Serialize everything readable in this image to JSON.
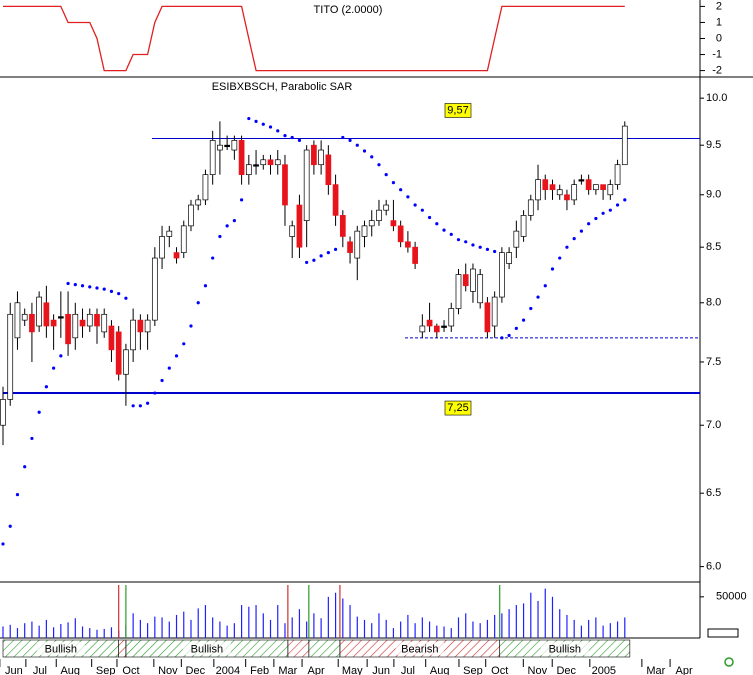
{
  "chart_data": [
    {
      "type": "line",
      "title": "TITO (2.0000)",
      "color": "#e02020",
      "values": [
        2,
        2,
        2,
        2,
        2,
        2,
        2,
        2,
        2,
        1,
        1,
        1,
        1,
        0,
        -2,
        -2,
        -2,
        -2,
        -1,
        -1,
        -1,
        1,
        2,
        2,
        2,
        2,
        2,
        2,
        2,
        2,
        2,
        2,
        2,
        2,
        0,
        -2,
        -2,
        -2,
        -2,
        -2,
        -2,
        -2,
        -2,
        -2,
        -2,
        -2,
        -2,
        -2,
        -2,
        -2,
        -2,
        -2,
        -2,
        -2,
        -2,
        -2,
        -2,
        -2,
        -2,
        -2,
        -2,
        -2,
        -2,
        -2,
        -2,
        -2,
        -2,
        -2,
        0,
        2,
        2,
        2,
        2,
        2,
        2,
        2,
        2,
        2,
        2,
        2,
        2,
        2,
        2,
        2,
        2,
        2,
        2
      ],
      "ylim": [
        -2.4,
        2.4
      ],
      "yticks": [
        2,
        1,
        0,
        -1,
        -2
      ]
    },
    {
      "type": "candlestick",
      "title": "ESIBXBSCH, Parabolic SAR",
      "log_scale": true,
      "up_color": "#ffffff",
      "down_color": "#e8141c",
      "flat_color": "#000000",
      "open": [
        7.0,
        7.2,
        7.7,
        7.85,
        7.9,
        7.8,
        8.0,
        7.85,
        7.88,
        7.9,
        7.7,
        7.85,
        7.8,
        7.9,
        7.75,
        7.8,
        7.75,
        7.4,
        7.6,
        7.85,
        7.75,
        7.85,
        8.4,
        8.6,
        8.45,
        8.45,
        8.7,
        8.9,
        8.95,
        9.2,
        9.45,
        9.5,
        9.45,
        9.55,
        9.2,
        9.3,
        9.3,
        9.35,
        9.3,
        9.3,
        8.6,
        8.9,
        8.75,
        9.5,
        9.3,
        9.4,
        9.1,
        8.8,
        8.55,
        8.4,
        8.6,
        8.7,
        8.75,
        8.85,
        8.75,
        8.7,
        8.55,
        8.5,
        7.75,
        7.85,
        7.8,
        7.8,
        7.8,
        7.95,
        8.25,
        8.1,
        8.0,
        8.0,
        7.8,
        8.05,
        8.35,
        8.5,
        8.6,
        8.8,
        8.95,
        9.15,
        9.1,
        9.0,
        9.0,
        8.95,
        9.15,
        9.15,
        9.05,
        9.1,
        9.0,
        9.1,
        9.3
      ],
      "high": [
        7.3,
        8.0,
        8.1,
        7.95,
        8.0,
        8.1,
        8.15,
        7.9,
        8.1,
        8.1,
        8.0,
        7.95,
        7.95,
        7.95,
        7.95,
        7.85,
        7.8,
        7.65,
        7.95,
        7.9,
        7.9,
        8.5,
        8.7,
        8.7,
        8.5,
        8.75,
        8.95,
        9.0,
        9.25,
        9.65,
        9.75,
        9.6,
        9.6,
        9.6,
        9.4,
        9.45,
        9.4,
        9.4,
        9.45,
        9.4,
        8.75,
        9.0,
        9.5,
        9.55,
        9.55,
        9.5,
        9.2,
        8.85,
        8.6,
        8.7,
        8.75,
        8.85,
        8.95,
        8.95,
        8.95,
        8.75,
        8.65,
        8.55,
        7.9,
        8.0,
        7.82,
        7.85,
        8.0,
        8.3,
        8.35,
        8.35,
        8.3,
        8.05,
        8.1,
        8.5,
        8.5,
        8.75,
        8.85,
        9.0,
        9.3,
        9.2,
        9.15,
        9.1,
        9.05,
        9.15,
        9.2,
        9.2,
        9.1,
        9.1,
        9.15,
        9.35,
        9.75
      ],
      "low": [
        6.85,
        7.15,
        7.6,
        7.8,
        7.5,
        7.75,
        7.7,
        7.6,
        7.7,
        7.55,
        7.6,
        7.7,
        7.75,
        7.65,
        7.7,
        7.5,
        7.35,
        7.15,
        7.5,
        7.6,
        7.6,
        7.8,
        8.3,
        8.5,
        8.35,
        8.4,
        8.65,
        8.85,
        8.9,
        9.1,
        9.2,
        9.45,
        9.35,
        9.1,
        9.1,
        9.2,
        9.25,
        9.2,
        9.2,
        8.7,
        8.4,
        8.4,
        8.5,
        9.2,
        9.2,
        9.0,
        8.7,
        8.5,
        8.35,
        8.2,
        8.5,
        8.6,
        8.7,
        8.8,
        8.65,
        8.5,
        8.45,
        8.3,
        7.7,
        7.75,
        7.7,
        7.75,
        7.75,
        7.9,
        8.1,
        8.0,
        7.95,
        7.7,
        7.7,
        8.0,
        8.3,
        8.4,
        8.55,
        8.75,
        8.85,
        8.95,
        8.95,
        8.95,
        8.85,
        8.9,
        9.1,
        9.0,
        9.0,
        8.95,
        8.95,
        9.05,
        9.3
      ],
      "close": [
        7.2,
        7.9,
        8.0,
        7.9,
        7.75,
        8.05,
        7.8,
        7.8,
        7.88,
        7.65,
        7.9,
        7.8,
        7.9,
        7.8,
        7.9,
        7.6,
        7.4,
        7.6,
        7.85,
        7.75,
        7.85,
        8.4,
        8.6,
        8.65,
        8.4,
        8.7,
        8.9,
        8.95,
        9.2,
        9.55,
        9.5,
        9.5,
        9.55,
        9.2,
        9.3,
        9.3,
        9.35,
        9.3,
        9.35,
        8.9,
        8.7,
        8.5,
        9.45,
        9.3,
        9.45,
        9.1,
        8.8,
        8.6,
        8.45,
        8.65,
        8.7,
        8.75,
        8.85,
        8.9,
        8.7,
        8.55,
        8.5,
        8.35,
        7.8,
        7.8,
        7.75,
        7.8,
        7.95,
        8.25,
        8.15,
        8.3,
        8.25,
        7.75,
        8.05,
        8.45,
        8.45,
        8.65,
        8.8,
        8.95,
        9.15,
        9.05,
        9.05,
        9.05,
        8.95,
        9.1,
        9.15,
        9.05,
        9.1,
        9.05,
        9.1,
        9.3,
        9.7
      ],
      "sar": {
        "color": "#0000ff",
        "values": [
          6.15,
          6.27,
          6.49,
          6.69,
          6.9,
          7.1,
          7.3,
          7.45,
          7.55,
          8.17,
          8.16,
          8.15,
          8.14,
          8.13,
          8.12,
          8.1,
          8.08,
          8.04,
          7.15,
          7.15,
          7.17,
          7.25,
          7.35,
          7.45,
          7.55,
          7.65,
          7.8,
          8.0,
          8.15,
          8.4,
          8.6,
          8.7,
          8.75,
          8.95,
          9.78,
          9.75,
          9.72,
          9.69,
          9.65,
          9.6,
          9.58,
          9.55,
          8.36,
          8.38,
          8.42,
          8.45,
          8.48,
          9.58,
          9.55,
          9.5,
          9.44,
          9.38,
          9.3,
          9.2,
          9.12,
          9.05,
          8.98,
          8.9,
          8.85,
          8.78,
          8.72,
          8.66,
          8.62,
          8.57,
          8.55,
          8.52,
          8.5,
          8.48,
          8.46,
          7.7,
          7.72,
          7.78,
          7.85,
          7.95,
          8.05,
          8.15,
          8.3,
          8.4,
          8.5,
          8.58,
          8.65,
          8.72,
          8.77,
          8.82,
          8.85,
          8.9,
          8.95
        ]
      },
      "hlines": [
        {
          "value": 9.57,
          "label": "9,57",
          "from": 20.6,
          "color": "#0000cc",
          "width": 1
        },
        {
          "value": 7.25,
          "label": "7,25",
          "from": 0,
          "color": "#0000cc",
          "width": 2
        },
        {
          "value": 7.7,
          "from": 55.6,
          "color": "#0000cc",
          "width": 1,
          "dashed": true
        }
      ],
      "label_color": "#ffff00",
      "ylim": [
        5.9,
        10.2
      ],
      "yticks": [
        {
          "value": 10,
          "label": "10.0"
        },
        9.5,
        {
          "value": 9,
          "label": "9.0"
        },
        8.5,
        {
          "value": 8,
          "label": "8.0"
        },
        7.5,
        {
          "value": 7,
          "label": "7.0"
        },
        6.5,
        {
          "value": 6,
          "label": "6.0"
        }
      ]
    },
    {
      "type": "volume",
      "color": "#2020ff",
      "values": [
        14000,
        16000,
        12000,
        18000,
        20000,
        15000,
        22000,
        13000,
        17000,
        19000,
        24000,
        14000,
        12000,
        10000,
        11000,
        13000,
        9000,
        16000,
        30000,
        22000,
        18000,
        26000,
        25000,
        20000,
        28000,
        32000,
        22000,
        36000,
        40000,
        25000,
        20000,
        15000,
        18000,
        40000,
        38000,
        40000,
        30000,
        22000,
        40000,
        18000,
        25000,
        35000,
        20000,
        30000,
        24000,
        50000,
        55000,
        48000,
        40000,
        26000,
        22000,
        18000,
        30000,
        22000,
        12000,
        20000,
        28000,
        18000,
        25000,
        20000,
        15000,
        14000,
        12000,
        25000,
        30000,
        20000,
        18000,
        22000,
        28000,
        30000,
        35000,
        40000,
        42000,
        55000,
        45000,
        60000,
        50000,
        35000,
        28000,
        22000,
        15000,
        22000,
        25000,
        15000,
        18000,
        20000,
        25000
      ],
      "ylim": [
        0,
        68000
      ],
      "yticks": [
        50000
      ]
    },
    {
      "type": "bands",
      "bands": [
        {
          "start": 0,
          "end": 16,
          "color": "#2a9a2a",
          "label": "Bullish"
        },
        {
          "start": 16,
          "end": 17,
          "color": "#d03030"
        },
        {
          "start": 17,
          "end": 39.4,
          "color": "#2a9a2a",
          "label": "Bullish"
        },
        {
          "start": 39.4,
          "end": 42.3,
          "color": "#d03030"
        },
        {
          "start": 42.3,
          "end": 46.6,
          "color": "#2a9a2a"
        },
        {
          "start": 46.6,
          "end": 68.7,
          "color": "#d03030",
          "label": "Bearish"
        },
        {
          "start": 68.7,
          "end": 86.7,
          "color": "#2a9a2a",
          "label": "Bullish"
        }
      ],
      "xlim": [
        0,
        103
      ],
      "xticks": [
        {
          "value": 1.5,
          "label": "Jun"
        },
        {
          "value": 5.1,
          "label": "Jul"
        },
        {
          "value": 9.3,
          "label": "Aug"
        },
        {
          "value": 14.2,
          "label": "Sep"
        },
        {
          "value": 17.7,
          "label": "Oct"
        },
        {
          "value": 22.8,
          "label": "Nov"
        },
        {
          "value": 26.6,
          "label": "Dec"
        },
        {
          "value": 31.1,
          "label": "2004"
        },
        {
          "value": 35.5,
          "label": "Feb"
        },
        {
          "value": 39.4,
          "label": "Mar"
        },
        {
          "value": 43.3,
          "label": "Apr"
        },
        {
          "value": 48.3,
          "label": "May"
        },
        {
          "value": 52.3,
          "label": "Jun"
        },
        {
          "value": 56,
          "label": "Jul"
        },
        {
          "value": 60.4,
          "label": "Aug"
        },
        {
          "value": 65,
          "label": "Sep"
        },
        {
          "value": 68.7,
          "label": "Oct"
        },
        {
          "value": 73.9,
          "label": "Nov"
        },
        {
          "value": 77.9,
          "label": "Dec"
        },
        {
          "value": 83.1,
          "label": "2005"
        },
        {
          "value": 90.3,
          "label": "Mar"
        },
        {
          "value": 94.2,
          "label": "Apr"
        }
      ]
    }
  ]
}
